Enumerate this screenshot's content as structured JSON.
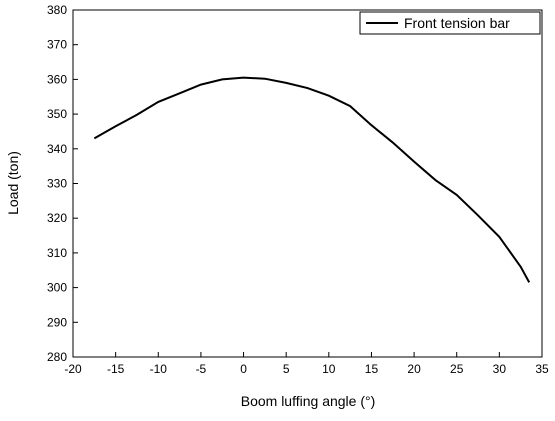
{
  "chart_data": {
    "type": "line",
    "x_label": "Boom luffing angle (°)",
    "y_label": "Load (ton)",
    "x": [
      -17.5,
      -15,
      -12.5,
      -10,
      -7.5,
      -5,
      -2.5,
      0,
      2.5,
      5,
      7.5,
      10,
      12.5,
      15,
      17.5,
      20,
      22.5,
      25,
      27.5,
      30,
      32.5,
      33.5
    ],
    "series": [
      {
        "name": "Front tension bar",
        "color": "#000000",
        "values": [
          343,
          346.5,
          349.8,
          353.5,
          356,
          358.5,
          360,
          360.5,
          360.2,
          359,
          357.5,
          355.3,
          352.3,
          346.8,
          341.8,
          336.3,
          331,
          326.7,
          320.8,
          314.6,
          306,
          301.5
        ]
      }
    ],
    "xlim": [
      -20,
      35
    ],
    "xticks": [
      -20,
      -15,
      -10,
      -5,
      0,
      5,
      10,
      15,
      20,
      25,
      30,
      35
    ],
    "ylim": [
      280,
      380
    ],
    "yticks": [
      280,
      290,
      300,
      310,
      320,
      330,
      340,
      350,
      360,
      370,
      380
    ],
    "legend": "top-right"
  }
}
